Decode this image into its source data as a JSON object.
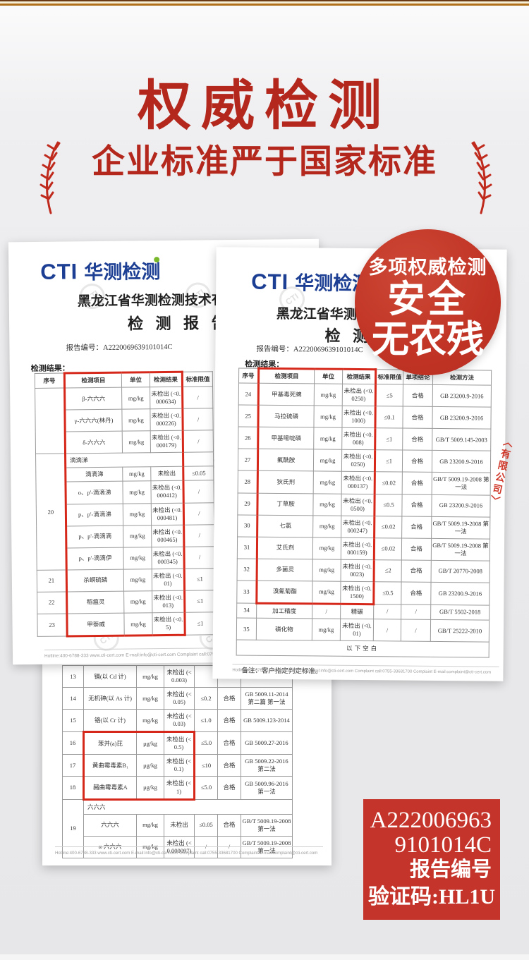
{
  "header": {
    "title": "权威检测",
    "subtitle": "企业标准严于国家标准"
  },
  "badge": {
    "line1": "多项权威检测",
    "line2": "安全",
    "line3": "无农残",
    "color": "#c13425"
  },
  "seal_text": "〈有限公司〉",
  "watermark": "CTI",
  "colors": {
    "headline_red": "#b3271c",
    "highlight_red": "#d6281a",
    "cti_blue": "#1d3f93",
    "cti_green": "#7ab82b"
  },
  "code_box": {
    "line1": "A222006963",
    "line2": "9101014C",
    "line3": "报告编号",
    "line4": "验证码:HL1U"
  },
  "report1": {
    "logo_cti": "CTI",
    "logo_cn": "华测检测",
    "org": "黑龙江省华测检测技术有限公司",
    "title": "检 测 报 告",
    "report_no": "报告编号：A2220069639101014C",
    "results_label": "检测结果：",
    "headers": [
      "序号",
      "检测项目",
      "单位",
      "检测结果",
      "标准限值"
    ],
    "rows": [
      [
        {
          "t": "序号",
          "cls": "head"
        },
        {
          "t": "检测项目",
          "cls": "head rt rl"
        },
        {
          "t": "单位",
          "cls": "head rt"
        },
        {
          "t": "检测结果",
          "cls": "head rt rr"
        },
        {
          "t": "标准限值",
          "cls": "head"
        }
      ],
      [
        {
          "t": "",
          "rs": 3
        },
        {
          "t": "β-六六六",
          "cls": "rl"
        },
        {
          "t": "mg/kg"
        },
        {
          "t": "未检出 (<0.000634)",
          "cls": "rr"
        },
        {
          "t": "/"
        }
      ],
      [
        {
          "t": "γ-六六六(林丹)",
          "cls": "rl"
        },
        {
          "t": "mg/kg"
        },
        {
          "t": "未检出 (<0.000226)",
          "cls": "rr"
        },
        {
          "t": "/"
        }
      ],
      [
        {
          "t": "δ-六六六",
          "cls": "rl"
        },
        {
          "t": "mg/kg"
        },
        {
          "t": "未检出 (<0.000179)",
          "cls": "rr"
        },
        {
          "t": "/"
        }
      ],
      [
        {
          "t": "20",
          "rs": 6
        },
        {
          "t": "滴滴涕",
          "cs": 3,
          "cls": "section rl rr"
        },
        {
          "t": ""
        }
      ],
      [
        {
          "t": "滴滴涕",
          "cls": "rl"
        },
        {
          "t": "mg/kg"
        },
        {
          "t": "未检出",
          "cls": "rr"
        },
        {
          "t": "≤0.05"
        }
      ],
      [
        {
          "t": "o、p'-滴滴涕",
          "cls": "rl"
        },
        {
          "t": "mg/kg"
        },
        {
          "t": "未检出 (<0.000412)",
          "cls": "rr"
        },
        {
          "t": "/"
        }
      ],
      [
        {
          "t": "p、p'-滴滴涕",
          "cls": "rl"
        },
        {
          "t": "mg/kg"
        },
        {
          "t": "未检出 (<0.000481)",
          "cls": "rr"
        },
        {
          "t": "/"
        }
      ],
      [
        {
          "t": "p、p'-滴滴滴",
          "cls": "rl"
        },
        {
          "t": "mg/kg"
        },
        {
          "t": "未检出 (<0.000465)",
          "cls": "rr"
        },
        {
          "t": "/"
        }
      ],
      [
        {
          "t": "p、p'-滴滴伊",
          "cls": "rl"
        },
        {
          "t": "mg/kg"
        },
        {
          "t": "未检出 (<0.000345)",
          "cls": "rr"
        },
        {
          "t": "/"
        }
      ],
      [
        {
          "t": "21"
        },
        {
          "t": "杀螟硫磷",
          "cls": "rl"
        },
        {
          "t": "mg/kg"
        },
        {
          "t": "未检出 (<0.01)",
          "cls": "rr"
        },
        {
          "t": "≤1"
        }
      ],
      [
        {
          "t": "22"
        },
        {
          "t": "稻瘟灵",
          "cls": "rl"
        },
        {
          "t": "mg/kg"
        },
        {
          "t": "未检出 (<0.013)",
          "cls": "rr"
        },
        {
          "t": "≤1"
        }
      ],
      [
        {
          "t": "23"
        },
        {
          "t": "甲萘威",
          "cls": "rl rb"
        },
        {
          "t": "mg/kg",
          "cls": "rb"
        },
        {
          "t": "未检出 (<0.5)",
          "cls": "rr rb"
        },
        {
          "t": "≤1"
        }
      ]
    ],
    "footer": "Hotline:400-6788-333    www.cti-cert.com    E-mail:info@cti-cert.com    Complaint call:0755-33681700    Complaint E-mail:complaint@cti-cert.com"
  },
  "report2": {
    "logo_cti": "CTI",
    "logo_cn": "华测检测",
    "org": "黑龙江省华测检测技术有限公司",
    "title": "检 测 报 告",
    "report_no": "报告编号：A2220069639101014C",
    "results_label": "检测结果：",
    "headers": [
      "序号",
      "检测项目",
      "单位",
      "检测结果",
      "标准限值",
      "单项结论",
      "检测方法"
    ],
    "rows": [
      [
        {
          "t": "序号",
          "cls": "head"
        },
        {
          "t": "检测项目",
          "cls": "head rt rl"
        },
        {
          "t": "单位",
          "cls": "head rt"
        },
        {
          "t": "检测结果",
          "cls": "head rt rr"
        },
        {
          "t": "标准限值",
          "cls": "head"
        },
        {
          "t": "单项结论",
          "cls": "head"
        },
        {
          "t": "检测方法",
          "cls": "head"
        }
      ],
      [
        {
          "t": "24"
        },
        {
          "t": "甲基毒死蜱",
          "cls": "rl"
        },
        {
          "t": "mg/kg"
        },
        {
          "t": "未检出 (<0.0250)",
          "cls": "rr"
        },
        {
          "t": "≤5"
        },
        {
          "t": "合格"
        },
        {
          "t": "GB 23200.9-2016"
        }
      ],
      [
        {
          "t": "25"
        },
        {
          "t": "马拉硫磷",
          "cls": "rl"
        },
        {
          "t": "mg/kg"
        },
        {
          "t": "未检出 (<0.1000)",
          "cls": "rr"
        },
        {
          "t": "≤0.1"
        },
        {
          "t": "合格"
        },
        {
          "t": "GB 23200.9-2016"
        }
      ],
      [
        {
          "t": "26"
        },
        {
          "t": "甲基嘧啶磷",
          "cls": "rl"
        },
        {
          "t": "mg/kg"
        },
        {
          "t": "未检出 (<0.008)",
          "cls": "rr"
        },
        {
          "t": "≤1"
        },
        {
          "t": "合格"
        },
        {
          "t": "GB/T 5009.145-2003"
        }
      ],
      [
        {
          "t": "27"
        },
        {
          "t": "氟酰胺",
          "cls": "rl"
        },
        {
          "t": "mg/kg"
        },
        {
          "t": "未检出 (<0.0250)",
          "cls": "rr"
        },
        {
          "t": "≤1"
        },
        {
          "t": "合格"
        },
        {
          "t": "GB 23200.9-2016"
        }
      ],
      [
        {
          "t": "28"
        },
        {
          "t": "狄氏剂",
          "cls": "rl"
        },
        {
          "t": "mg/kg"
        },
        {
          "t": "未检出 (<0.000137)",
          "cls": "rr"
        },
        {
          "t": "≤0.02"
        },
        {
          "t": "合格"
        },
        {
          "t": "GB/T 5009.19-2008 第一法"
        }
      ],
      [
        {
          "t": "29"
        },
        {
          "t": "丁草胺",
          "cls": "rl"
        },
        {
          "t": "mg/kg"
        },
        {
          "t": "未检出 (<0.0500)",
          "cls": "rr"
        },
        {
          "t": "≤0.5"
        },
        {
          "t": "合格"
        },
        {
          "t": "GB 23200.9-2016"
        }
      ],
      [
        {
          "t": "30"
        },
        {
          "t": "七氯",
          "cls": "rl"
        },
        {
          "t": "mg/kg"
        },
        {
          "t": "未检出 (<0.000247)",
          "cls": "rr"
        },
        {
          "t": "≤0.02"
        },
        {
          "t": "合格"
        },
        {
          "t": "GB/T 5009.19-2008 第一法"
        }
      ],
      [
        {
          "t": "31"
        },
        {
          "t": "艾氏剂",
          "cls": "rl"
        },
        {
          "t": "mg/kg"
        },
        {
          "t": "未检出 (<0.000159)",
          "cls": "rr"
        },
        {
          "t": "≤0.02"
        },
        {
          "t": "合格"
        },
        {
          "t": "GB/T 5009.19-2008 第一法"
        }
      ],
      [
        {
          "t": "32"
        },
        {
          "t": "多菌灵",
          "cls": "rl"
        },
        {
          "t": "mg/kg"
        },
        {
          "t": "未检出 (<0.0023)",
          "cls": "rr"
        },
        {
          "t": "≤2"
        },
        {
          "t": "合格"
        },
        {
          "t": "GB/T 20770-2008"
        }
      ],
      [
        {
          "t": "33"
        },
        {
          "t": "溴氰菊酯",
          "cls": "rl rb"
        },
        {
          "t": "mg/kg",
          "cls": "rb"
        },
        {
          "t": "未检出 (<0.1500)",
          "cls": "rr rb"
        },
        {
          "t": "≤0.5"
        },
        {
          "t": "合格"
        },
        {
          "t": "GB 23200.9-2016"
        }
      ],
      [
        {
          "t": "34"
        },
        {
          "t": "加工精度"
        },
        {
          "t": "/"
        },
        {
          "t": "精碾"
        },
        {
          "t": "/"
        },
        {
          "t": "/"
        },
        {
          "t": "GB/T 5502-2018"
        }
      ],
      [
        {
          "t": "35"
        },
        {
          "t": "磷化物"
        },
        {
          "t": "mg/kg"
        },
        {
          "t": "未检出 (<0.01)"
        },
        {
          "t": "/"
        },
        {
          "t": "/"
        },
        {
          "t": "GB/T 25222-2010"
        }
      ],
      [
        {
          "t": "以下空白",
          "cs": 7,
          "cls": "blank"
        }
      ]
    ],
    "remark": "备注：客户指定判定标准。",
    "footer": "Hotline:400-6788-333    www.cti-cert.com    E-mail:info@cti-cert.com    Complaint call:0755-33681700    Complaint E-mail:complaint@cti-cert.com"
  },
  "report3": {
    "rows": [
      [
        {
          "t": "13"
        },
        {
          "t": "镉(以 Cd 计)"
        },
        {
          "t": "mg/kg"
        },
        {
          "t": "未检出 (<0.003)"
        },
        {
          "t": ""
        },
        {
          "t": ""
        },
        {
          "t": ""
        }
      ],
      [
        {
          "t": "14"
        },
        {
          "t": "无机砷(以 As 计)"
        },
        {
          "t": "mg/kg"
        },
        {
          "t": "未检出 (<0.05)"
        },
        {
          "t": "≤0.2"
        },
        {
          "t": "合格"
        },
        {
          "t": "GB 5009.11-2014 第二篇 第一法"
        }
      ],
      [
        {
          "t": "15"
        },
        {
          "t": "铬(以 Cr 计)"
        },
        {
          "t": "mg/kg"
        },
        {
          "t": "未检出 (<0.03)"
        },
        {
          "t": "≤1.0"
        },
        {
          "t": "合格"
        },
        {
          "t": "GB 5009.123-2014"
        }
      ],
      [
        {
          "t": "16"
        },
        {
          "t": "苯并(a)芘",
          "cls": "rt rl"
        },
        {
          "t": "μg/kg",
          "cls": "rt"
        },
        {
          "t": "未检出 (<0.5)",
          "cls": "rt rr"
        },
        {
          "t": "≤5.0"
        },
        {
          "t": "合格"
        },
        {
          "t": "GB 5009.27-2016"
        }
      ],
      [
        {
          "t": "17"
        },
        {
          "t": "黄曲霉毒素B₁",
          "cls": "rl"
        },
        {
          "t": "μg/kg"
        },
        {
          "t": "未检出 (<0.1)",
          "cls": "rr"
        },
        {
          "t": "≤10"
        },
        {
          "t": "合格"
        },
        {
          "t": "GB 5009.22-2016 第二法"
        }
      ],
      [
        {
          "t": "18"
        },
        {
          "t": "赭曲霉毒素A",
          "cls": "rl rb"
        },
        {
          "t": "μg/kg",
          "cls": "rb"
        },
        {
          "t": "未检出 (<1)",
          "cls": "rr rb"
        },
        {
          "t": "≤5.0"
        },
        {
          "t": "合格"
        },
        {
          "t": "GB 5009.96-2016 第一法"
        }
      ],
      [
        {
          "t": "19",
          "rs": 3
        },
        {
          "t": "六六六",
          "cs": 6,
          "cls": "section"
        }
      ],
      [
        {
          "t": "六六六"
        },
        {
          "t": "mg/kg"
        },
        {
          "t": "未检出"
        },
        {
          "t": "≤0.05"
        },
        {
          "t": "合格"
        },
        {
          "t": "GB/T 5009.19-2008 第一法"
        }
      ],
      [
        {
          "t": "α-六六六"
        },
        {
          "t": "mg/kg"
        },
        {
          "t": "未检出 (<0.000097)"
        },
        {
          "t": "/"
        },
        {
          "t": "/"
        },
        {
          "t": "GB/T 5009.19-2008 第一法"
        }
      ]
    ],
    "footer": "Hotline:400-6788-333    www.cti-cert.com    E-mail:info@cti-cert.com    Complaint call:0755-33681700    Complaint E-mail:complaint@cti-cert.com"
  }
}
